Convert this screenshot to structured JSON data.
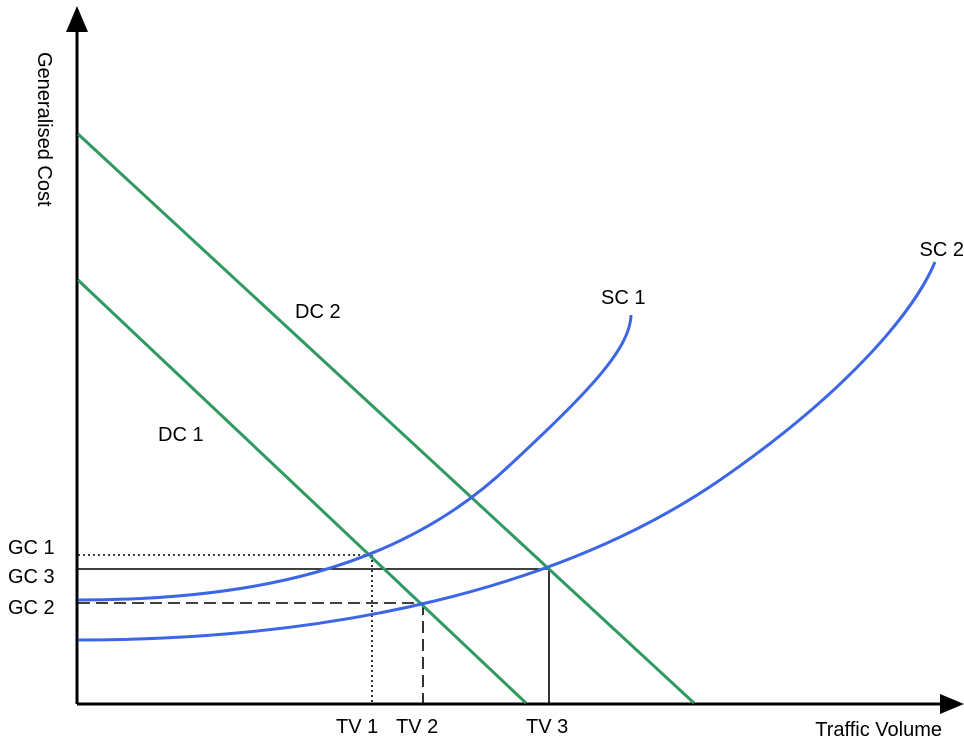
{
  "axes": {
    "y_label": "Generalised Cost",
    "x_label": "Traffic Volume"
  },
  "curves": {
    "dc1_label": "DC 1",
    "dc2_label": "DC 2",
    "sc1_label": "SC 1",
    "sc2_label": "SC 2"
  },
  "cost_levels": {
    "gc1": "GC 1",
    "gc3": "GC 3",
    "gc2": "GC 2"
  },
  "volume_levels": {
    "tv1": "TV 1",
    "tv2": "TV 2",
    "tv3": "TV 3"
  },
  "colors": {
    "demand_curve": "#2e9960",
    "supply_curve": "#3d66e6",
    "axis": "#000000",
    "guide_line": "#000000"
  }
}
